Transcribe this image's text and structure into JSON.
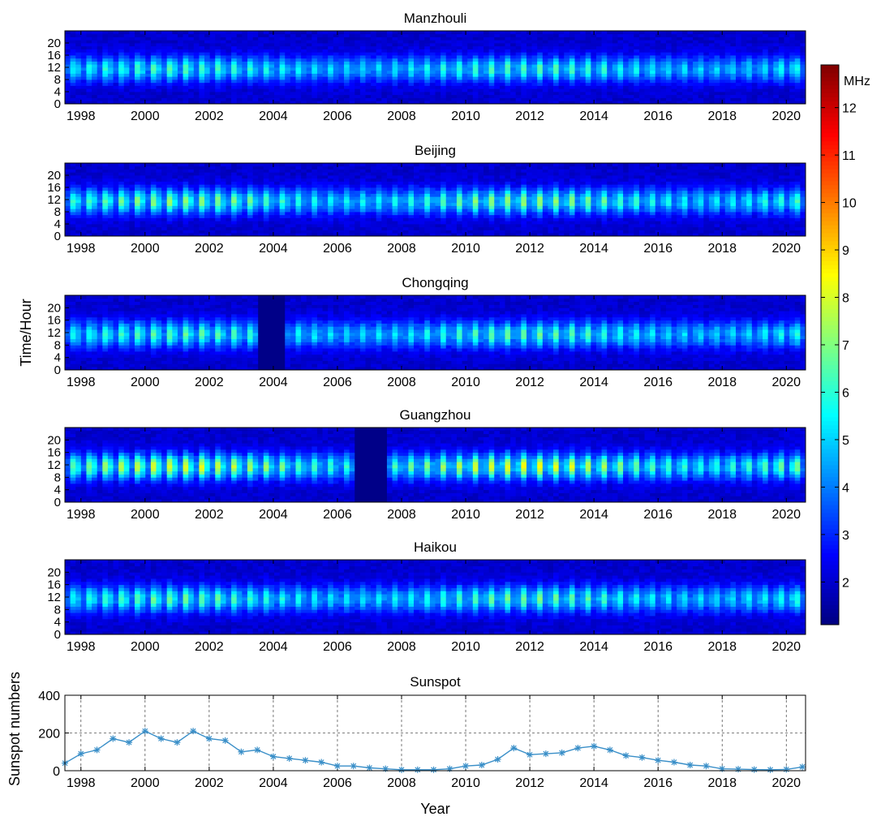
{
  "figure": {
    "y_axis_label": "Time/Hour",
    "colorbar": {
      "unit_label": "MHz",
      "min": 1.1,
      "max": 12.9,
      "ticks": [
        2,
        3,
        4,
        5,
        6,
        7,
        8,
        9,
        10,
        11,
        12
      ],
      "colormap": "jet"
    }
  },
  "chart_data": [
    {
      "type": "heatmap",
      "title": "Manzhouli",
      "xlabel": "",
      "ylabel": "",
      "xlim": [
        1997.5,
        2020.6
      ],
      "ylim": [
        0,
        24
      ],
      "x_ticks": [
        1998,
        2000,
        2002,
        2004,
        2006,
        2008,
        2010,
        2012,
        2014,
        2016,
        2018,
        2020
      ],
      "y_ticks": [
        0,
        4,
        8,
        12,
        16,
        20
      ],
      "value_unit": "MHz",
      "data_gaps": [],
      "peak_scale": 6.6
    },
    {
      "type": "heatmap",
      "title": "Beijing",
      "xlabel": "",
      "ylabel": "",
      "xlim": [
        1997.5,
        2020.6
      ],
      "ylim": [
        0,
        24
      ],
      "x_ticks": [
        1998,
        2000,
        2002,
        2004,
        2006,
        2008,
        2010,
        2012,
        2014,
        2016,
        2018,
        2020
      ],
      "y_ticks": [
        0,
        4,
        8,
        12,
        16,
        20
      ],
      "value_unit": "MHz",
      "data_gaps": [],
      "peak_scale": 7.4
    },
    {
      "type": "heatmap",
      "title": "Chongqing",
      "xlabel": "",
      "ylabel": "",
      "xlim": [
        1997.5,
        2020.6
      ],
      "ylim": [
        0,
        24
      ],
      "x_ticks": [
        1998,
        2000,
        2002,
        2004,
        2006,
        2008,
        2010,
        2012,
        2014,
        2016,
        2018,
        2020
      ],
      "y_ticks": [
        0,
        4,
        8,
        12,
        16,
        20
      ],
      "value_unit": "MHz",
      "data_gaps": [
        [
          2003.5,
          2004.4
        ]
      ],
      "peak_scale": 6.8
    },
    {
      "type": "heatmap",
      "title": "Guangzhou",
      "xlabel": "",
      "ylabel": "",
      "xlim": [
        1997.5,
        2020.6
      ],
      "ylim": [
        0,
        24
      ],
      "x_ticks": [
        1998,
        2000,
        2002,
        2004,
        2006,
        2008,
        2010,
        2012,
        2014,
        2016,
        2018,
        2020
      ],
      "y_ticks": [
        0,
        4,
        8,
        12,
        16,
        20
      ],
      "value_unit": "MHz",
      "data_gaps": [
        [
          2006.6,
          2007.6
        ]
      ],
      "peak_scale": 8.4
    },
    {
      "type": "heatmap",
      "title": "Haikou",
      "xlabel": "",
      "ylabel": "",
      "xlim": [
        1997.5,
        2020.6
      ],
      "ylim": [
        0,
        24
      ],
      "x_ticks": [
        1998,
        2000,
        2002,
        2004,
        2006,
        2008,
        2010,
        2012,
        2014,
        2016,
        2018,
        2020
      ],
      "y_ticks": [
        0,
        4,
        8,
        12,
        16,
        20
      ],
      "value_unit": "MHz",
      "data_gaps": [],
      "peak_scale": 6.9
    },
    {
      "type": "line",
      "title": "Sunspot",
      "xlabel": "Year",
      "ylabel": "Sunspot numbers",
      "xlim": [
        1997.5,
        2020.6
      ],
      "ylim": [
        0,
        400
      ],
      "x_ticks": [
        1998,
        2000,
        2002,
        2004,
        2006,
        2008,
        2010,
        2012,
        2014,
        2016,
        2018,
        2020
      ],
      "y_ticks": [
        0,
        200,
        400
      ],
      "grid": true,
      "marker": "*",
      "color": "#3a8fc8",
      "x": [
        1997.5,
        1998.0,
        1998.5,
        1999.0,
        1999.5,
        2000.0,
        2000.5,
        2001.0,
        2001.5,
        2002.0,
        2002.5,
        2003.0,
        2003.5,
        2004.0,
        2004.5,
        2005.0,
        2005.5,
        2006.0,
        2006.5,
        2007.0,
        2007.5,
        2008.0,
        2008.5,
        2009.0,
        2009.5,
        2010.0,
        2010.5,
        2011.0,
        2011.5,
        2012.0,
        2012.5,
        2013.0,
        2013.5,
        2014.0,
        2014.5,
        2015.0,
        2015.5,
        2016.0,
        2016.5,
        2017.0,
        2017.5,
        2018.0,
        2018.5,
        2019.0,
        2019.5,
        2020.0,
        2020.5
      ],
      "y": [
        40,
        90,
        110,
        170,
        150,
        210,
        170,
        150,
        210,
        170,
        160,
        100,
        110,
        75,
        65,
        55,
        45,
        25,
        25,
        15,
        10,
        5,
        5,
        5,
        10,
        25,
        30,
        60,
        120,
        85,
        90,
        95,
        120,
        130,
        110,
        80,
        70,
        55,
        45,
        30,
        25,
        10,
        8,
        6,
        5,
        7,
        20
      ]
    }
  ]
}
